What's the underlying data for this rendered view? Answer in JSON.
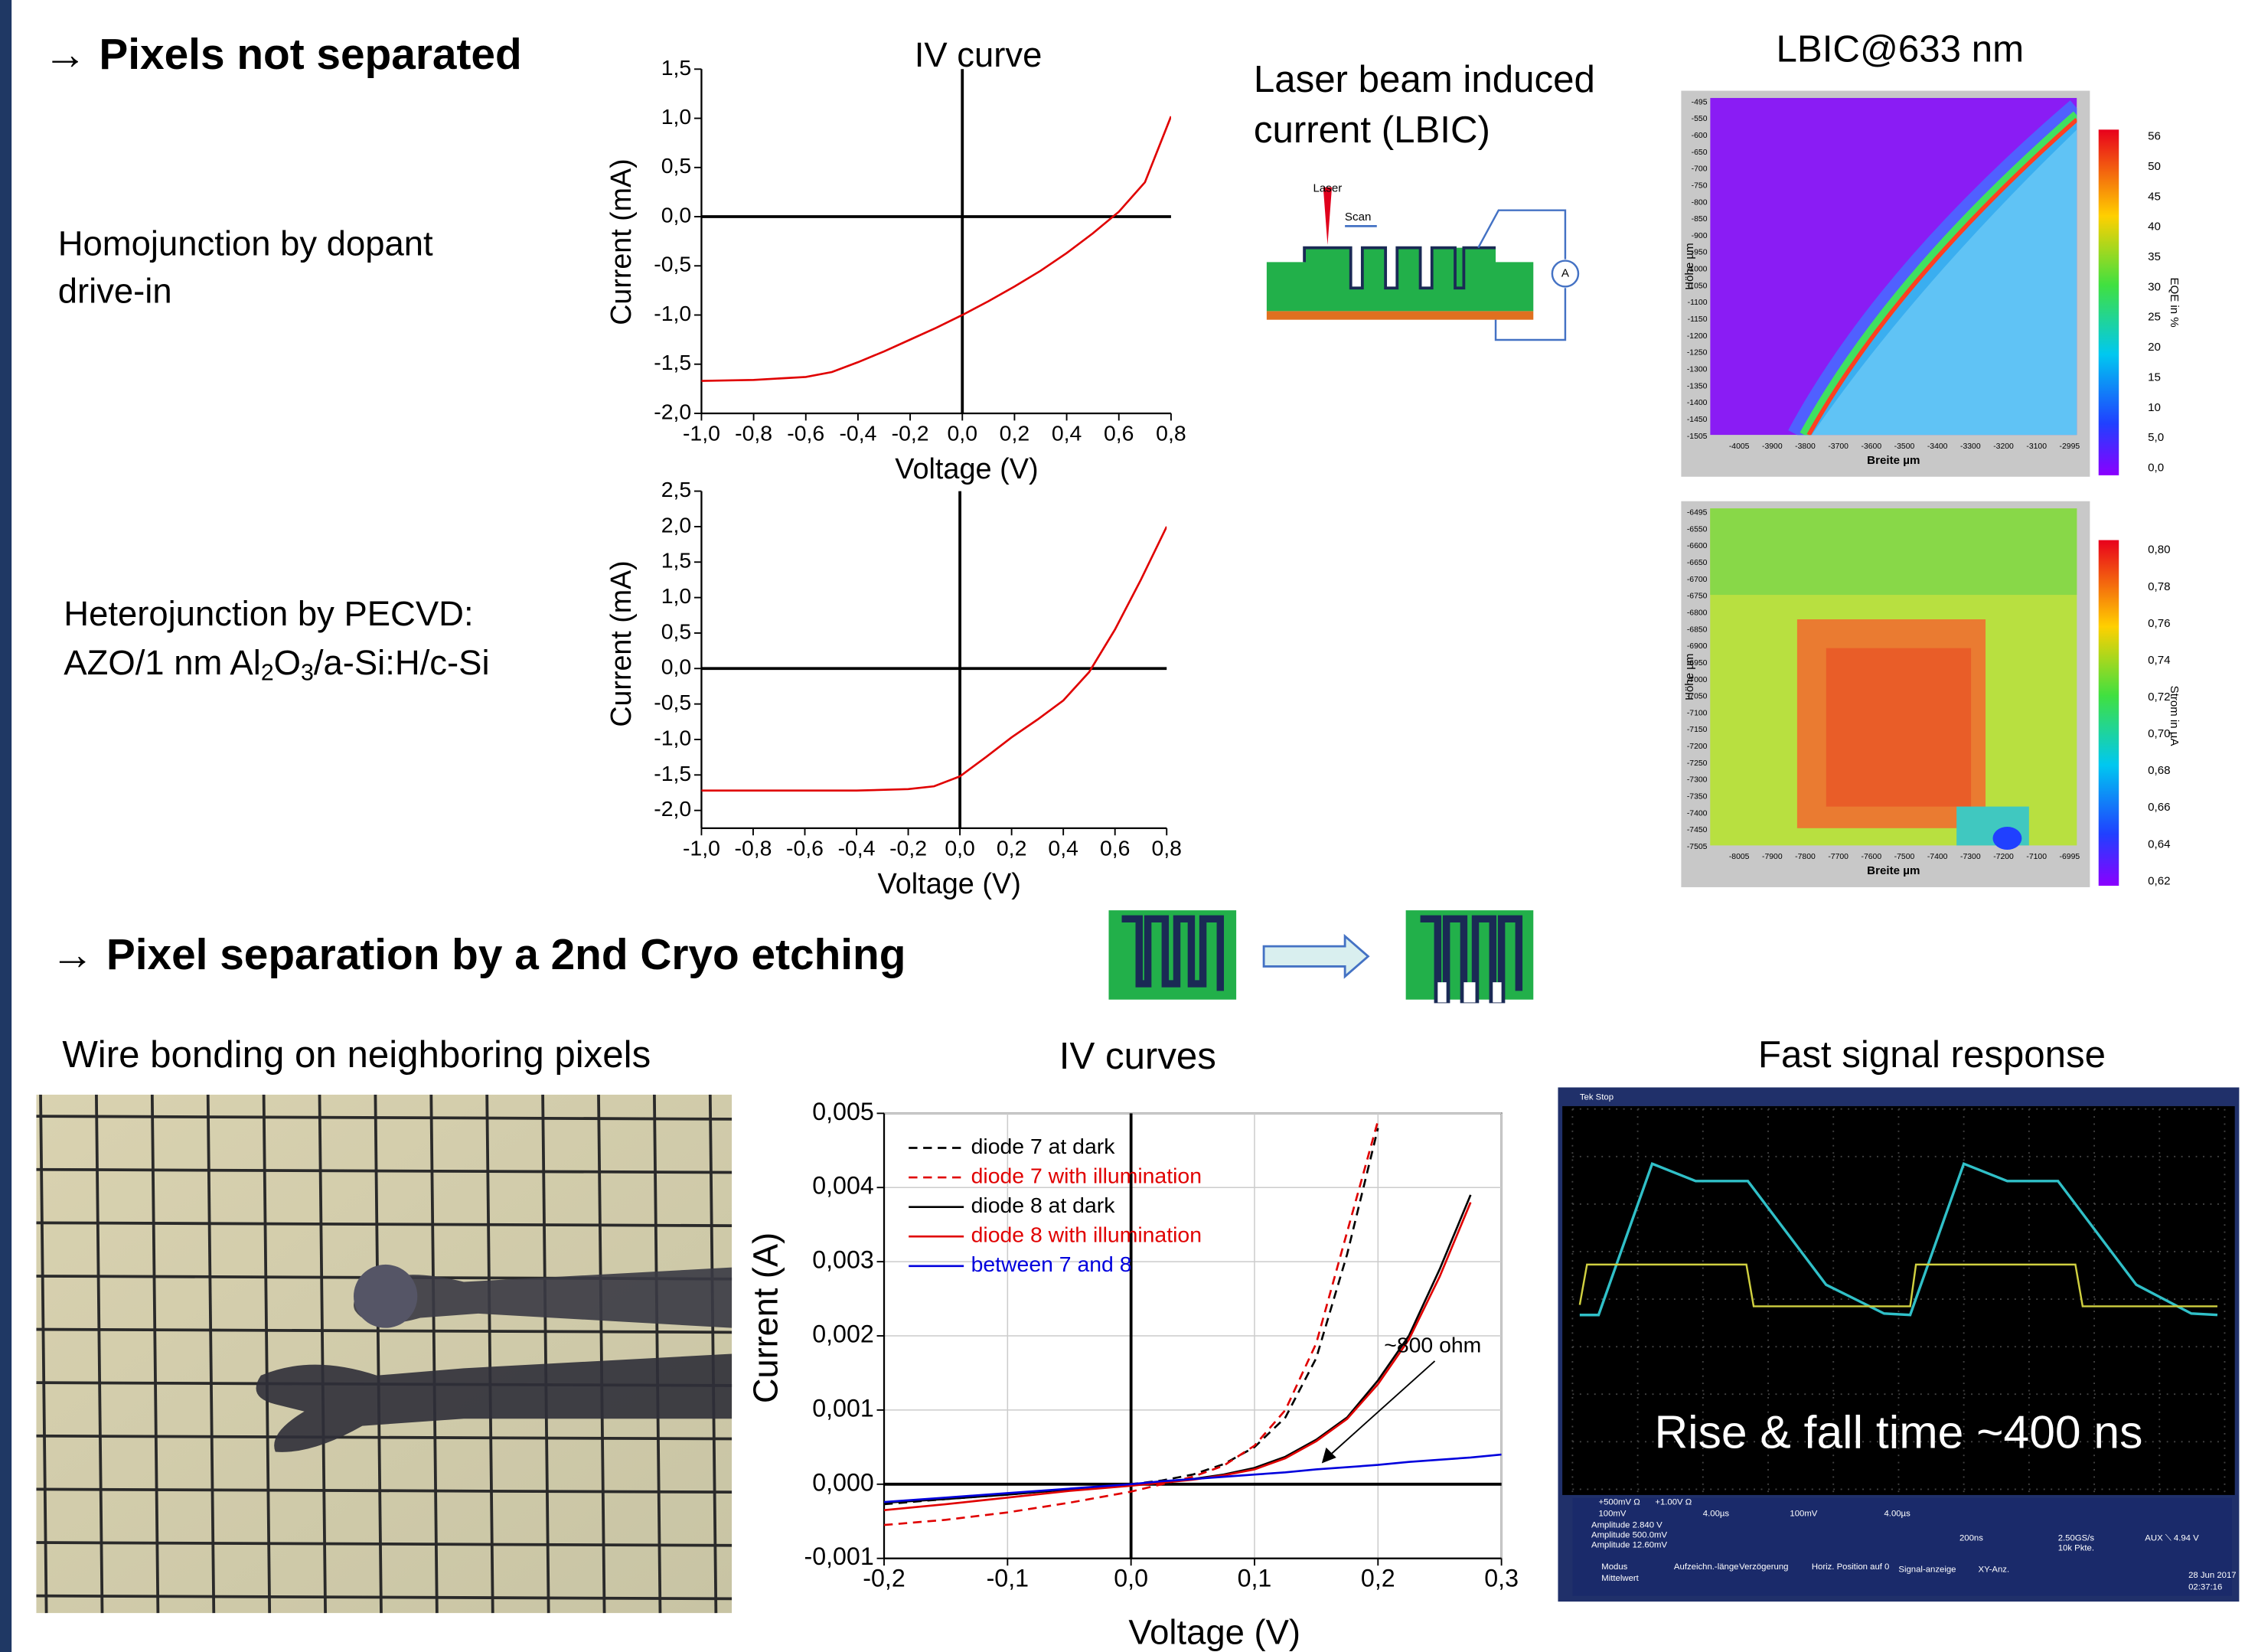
{
  "slide": {
    "heading1": "→ Pixels not separated",
    "homojunction": [
      "Homojunction by dopant",
      "drive-in"
    ],
    "heterojunction_line1": "Heterojunction by PECVD:",
    "heterojunction_line2": [
      {
        "text": "AZO/1 nm Al"
      },
      {
        "text": "2",
        "sub": true
      },
      {
        "text": "O"
      },
      {
        "text": "3",
        "sub": true
      },
      {
        "text": "/a-Si:H/c-Si"
      }
    ],
    "lbic_title": [
      "Laser beam induced",
      "current (LBIC)"
    ],
    "lbic_diagram": {
      "laser": "Laser",
      "scan": "Scan",
      "meter": "A"
    },
    "lbic_map_title": "LBIC@633 nm",
    "lbic_maps": [
      {
        "y_label": "Höhe µm",
        "x_label": "Breite µm",
        "cbar_label": "EQE in %",
        "cbar_ticks": [
          "56",
          "50",
          "45",
          "40",
          "35",
          "30",
          "25",
          "20",
          "15",
          "10",
          "5,0",
          "0,0"
        ],
        "x_ticks": [
          "-4005",
          "-3900",
          "-3800",
          "-3700",
          "-3600",
          "-3500",
          "-3400",
          "-3300",
          "-3200",
          "-3100",
          "-2995"
        ],
        "y_ticks": [
          "-495",
          "-550",
          "-600",
          "-650",
          "-700",
          "-750",
          "-800",
          "-850",
          "-900",
          "-950",
          "-1000",
          "-1050",
          "-1100",
          "-1150",
          "-1200",
          "-1250",
          "-1300",
          "-1350",
          "-1400",
          "-1450",
          "-1505"
        ]
      },
      {
        "y_label": "Höhe µm",
        "x_label": "Breite µm",
        "cbar_label": "Strom in µA",
        "cbar_ticks": [
          "0,80",
          "0,78",
          "0,76",
          "0,74",
          "0,72",
          "0,70",
          "0,68",
          "0,66",
          "0,64",
          "0,62"
        ],
        "x_ticks": [
          "-8005",
          "-7900",
          "-7800",
          "-7700",
          "-7600",
          "-7500",
          "-7400",
          "-7300",
          "-7200",
          "-7100",
          "-6995"
        ],
        "y_ticks": [
          "-6495",
          "-6550",
          "-6600",
          "-6650",
          "-6700",
          "-6750",
          "-6800",
          "-6850",
          "-6900",
          "-6950",
          "-7000",
          "-7050",
          "-7100",
          "-7150",
          "-7200",
          "-7250",
          "-7300",
          "-7350",
          "-7400",
          "-7450",
          "-7505"
        ]
      }
    ],
    "heading2": "→ Pixel separation by a 2nd Cryo etching",
    "wire_caption": "Wire bonding on neighboring pixels",
    "signal_caption": "Fast signal response",
    "scope_text": "Rise & fall time ~400 ns",
    "scope_labels": [
      "Tek Stop",
      "+500mV Ω",
      "+1.00V Ω",
      "100mV",
      "4.00µs",
      "100mV",
      "4.00µs",
      "Amplitude 2.840 V",
      "Amplitude 500.0mV",
      "Amplitude 12.60mV",
      "200ns",
      "2.50GS/s",
      "10k Pkte.",
      "AUX ⟍ 4.94 V",
      "Modus",
      "Mittelwert",
      "Aufzeichn.-länge",
      "Verzögerung",
      "Horiz. Position auf 0",
      "Signal-anzeige",
      "XY-Anz.",
      "28 Jun 2017",
      "02:37:16"
    ]
  },
  "chart_data": [
    {
      "type": "line",
      "title": "IV curve",
      "x_label": "Voltage (V)",
      "y_label": "Current (mA)",
      "x": [
        -1.0,
        -0.8,
        -0.6,
        -0.5,
        -0.4,
        -0.3,
        -0.2,
        -0.1,
        0.0,
        0.1,
        0.2,
        0.3,
        0.4,
        0.5,
        0.6,
        0.7,
        0.8
      ],
      "series": [
        {
          "color": "#e00000",
          "values": [
            -1.67,
            -1.66,
            -1.63,
            -1.58,
            -1.48,
            -1.37,
            -1.25,
            -1.13,
            -1.0,
            -0.86,
            -0.71,
            -0.55,
            -0.37,
            -0.17,
            0.05,
            0.35,
            1.02
          ]
        }
      ],
      "xlim": [
        -1.0,
        0.8
      ],
      "ylim": [
        -2.0,
        1.5
      ],
      "xticks": [
        {
          "value": -1.0,
          "label": "-1,0"
        },
        {
          "value": -0.8,
          "label": "-0,8"
        },
        {
          "value": -0.6,
          "label": "-0,6"
        },
        {
          "value": -0.4,
          "label": "-0,4"
        },
        {
          "value": -0.2,
          "label": "-0,2"
        },
        {
          "value": 0.0,
          "label": "0,0"
        },
        {
          "value": 0.2,
          "label": "0,2"
        },
        {
          "value": 0.4,
          "label": "0,4"
        },
        {
          "value": 0.6,
          "label": "0,6"
        },
        {
          "value": 0.8,
          "label": "0,8"
        }
      ],
      "yticks": [
        {
          "value": -2.0,
          "label": "-2,0"
        },
        {
          "value": -1.5,
          "label": "-1,5"
        },
        {
          "value": -1.0,
          "label": "-1,0"
        },
        {
          "value": -0.5,
          "label": "-0,5"
        },
        {
          "value": 0.0,
          "label": "0,0"
        },
        {
          "value": 0.5,
          "label": "0,5"
        },
        {
          "value": 1.0,
          "label": "1,0"
        },
        {
          "value": 1.5,
          "label": "1,5"
        }
      ],
      "zero_lines": true,
      "grid": false,
      "frame": false
    },
    {
      "type": "line",
      "x_label": "Voltage (V)",
      "y_label": "Current (mA)",
      "x": [
        -1.0,
        -0.8,
        -0.6,
        -0.4,
        -0.2,
        -0.1,
        0.0,
        0.1,
        0.2,
        0.3,
        0.4,
        0.5,
        0.6,
        0.7,
        0.8
      ],
      "series": [
        {
          "color": "#e00000",
          "values": [
            -1.72,
            -1.72,
            -1.72,
            -1.72,
            -1.7,
            -1.66,
            -1.52,
            -1.25,
            -0.97,
            -0.72,
            -0.45,
            -0.05,
            0.55,
            1.25,
            2.0
          ]
        }
      ],
      "xlim": [
        -1.0,
        0.8
      ],
      "ylim": [
        -2.25,
        2.5
      ],
      "xticks": [
        {
          "value": -1.0,
          "label": "-1,0"
        },
        {
          "value": -0.8,
          "label": "-0,8"
        },
        {
          "value": -0.6,
          "label": "-0,6"
        },
        {
          "value": -0.4,
          "label": "-0,4"
        },
        {
          "value": -0.2,
          "label": "-0,2"
        },
        {
          "value": 0.0,
          "label": "0,0"
        },
        {
          "value": 0.2,
          "label": "0,2"
        },
        {
          "value": 0.4,
          "label": "0,4"
        },
        {
          "value": 0.6,
          "label": "0,6"
        },
        {
          "value": 0.8,
          "label": "0,8"
        }
      ],
      "yticks": [
        {
          "value": -2.0,
          "label": "-2,0"
        },
        {
          "value": -1.5,
          "label": "-1,5"
        },
        {
          "value": -1.0,
          "label": "-1,0"
        },
        {
          "value": -0.5,
          "label": "-0,5"
        },
        {
          "value": 0.0,
          "label": "0,0"
        },
        {
          "value": 0.5,
          "label": "0,5"
        },
        {
          "value": 1.0,
          "label": "1,0"
        },
        {
          "value": 1.5,
          "label": "1,5"
        },
        {
          "value": 2.0,
          "label": "2,0"
        },
        {
          "value": 2.5,
          "label": "2,5"
        }
      ],
      "zero_lines": true,
      "grid": false,
      "frame": false
    },
    {
      "type": "line",
      "title": "IV curves",
      "x_label": "Voltage (V)",
      "y_label": "Current (A)",
      "x": [
        -0.2,
        -0.15,
        -0.1,
        -0.05,
        0.0,
        0.025,
        0.05,
        0.075,
        0.1,
        0.125,
        0.15,
        0.175,
        0.2,
        0.225,
        0.25,
        0.275,
        0.3
      ],
      "series": [
        {
          "name": "diode 7 at dark",
          "color": "#000000",
          "dashed": true,
          "values": [
            -0.00027,
            -0.0002,
            -0.00014,
            -7e-05,
            0.0,
            5e-05,
            0.00013,
            0.00027,
            0.0005,
            0.0009,
            0.0017,
            0.0031,
            0.0048,
            null,
            null,
            null,
            null
          ]
        },
        {
          "name": "diode 7 with illumination",
          "color": "#e00000",
          "dashed": true,
          "values": [
            -0.00055,
            -0.00048,
            -0.00038,
            -0.00025,
            -0.0001,
            0.0,
            0.0001,
            0.00025,
            0.00052,
            0.001,
            0.0019,
            0.0034,
            0.0049,
            null,
            null,
            null,
            null
          ]
        },
        {
          "name": "diode 8 at dark",
          "color": "#000000",
          "dashed": false,
          "values": [
            -0.00025,
            -0.0002,
            -0.00014,
            -7e-05,
            0.0,
            3e-05,
            7e-05,
            0.00013,
            0.00022,
            0.00037,
            0.0006,
            0.0009,
            0.0014,
            0.002,
            0.0029,
            0.0039,
            null
          ]
        },
        {
          "name": "diode 8 with illumination",
          "color": "#e00000",
          "dashed": false,
          "values": [
            -0.00035,
            -0.00027,
            -0.00018,
            -9e-05,
            -2e-05,
            2e-05,
            6e-05,
            0.00012,
            0.0002,
            0.00035,
            0.00058,
            0.00088,
            0.00135,
            0.00195,
            0.0028,
            0.0038,
            null
          ]
        },
        {
          "name": "between 7 and 8",
          "color": "#0000dd",
          "dashed": false,
          "values": [
            -0.00024,
            -0.00018,
            -0.00012,
            -6e-05,
            0.0,
            4e-05,
            7e-05,
            0.0001,
            0.00013,
            0.00016,
            0.0002,
            0.00023,
            0.00026,
            0.0003,
            0.00033,
            0.00036,
            0.0004
          ]
        }
      ],
      "xlim": [
        -0.2,
        0.3
      ],
      "ylim": [
        -0.001,
        0.005
      ],
      "xticks": [
        {
          "value": -0.2,
          "label": "-0,2"
        },
        {
          "value": -0.1,
          "label": "-0,1"
        },
        {
          "value": 0.0,
          "label": "0,0"
        },
        {
          "value": 0.1,
          "label": "0,1"
        },
        {
          "value": 0.2,
          "label": "0,2"
        },
        {
          "value": 0.3,
          "label": "0,3"
        }
      ],
      "yticks": [
        {
          "value": -0.001,
          "label": "-0,001"
        },
        {
          "value": 0.0,
          "label": "0,000"
        },
        {
          "value": 0.001,
          "label": "0,001"
        },
        {
          "value": 0.002,
          "label": "0,002"
        },
        {
          "value": 0.003,
          "label": "0,003"
        },
        {
          "value": 0.004,
          "label": "0,004"
        },
        {
          "value": 0.005,
          "label": "0,005"
        }
      ],
      "annotation": "~800 ohm",
      "zero_lines": true,
      "grid": true,
      "frame": true,
      "legend": "upper-left"
    }
  ]
}
